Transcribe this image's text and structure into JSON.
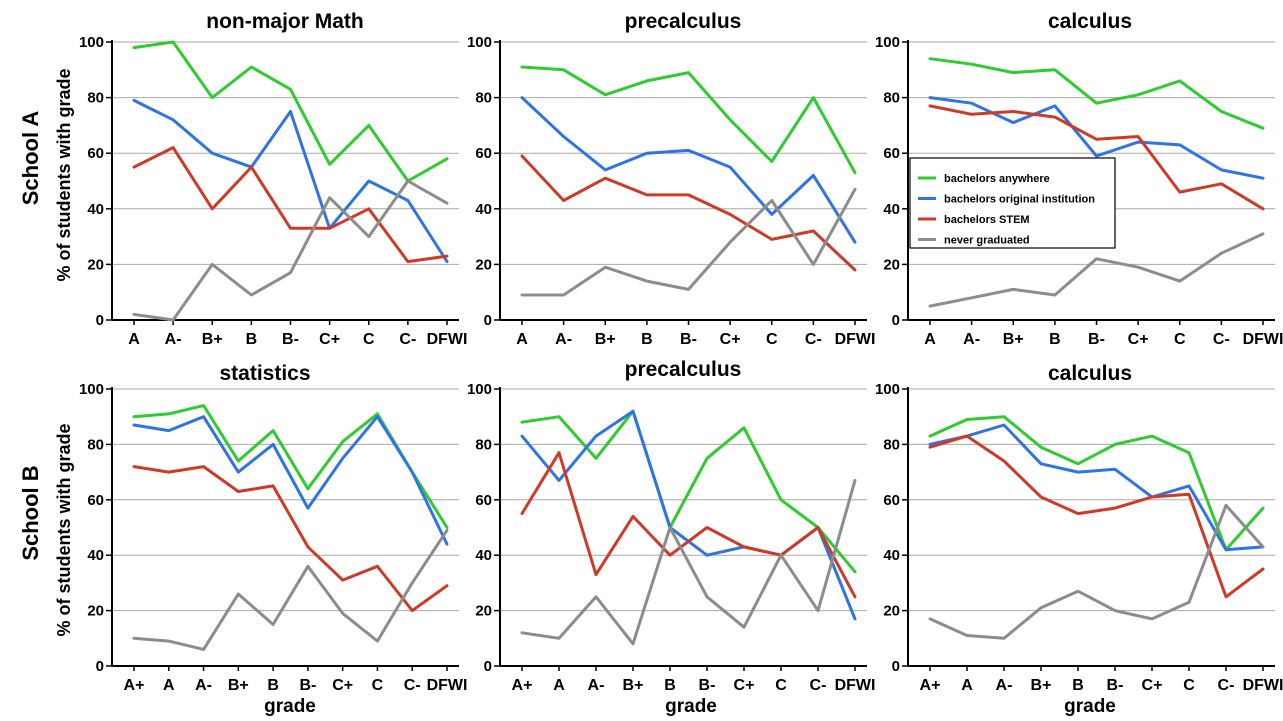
{
  "figure": {
    "row_labels": [
      "School A",
      "School B"
    ],
    "y_axis_labels": [
      "% of students with grade",
      "% of students  with grade"
    ],
    "x_axis_label": "grade"
  },
  "colors": {
    "bachelors_anywhere": "#2ecc2e",
    "bachelors_original": "#2f74e6",
    "bachelors_stem": "#cf3a26",
    "never_graduated": "#8c8c8c"
  },
  "legend": [
    {
      "label": "bachelors anywhere",
      "color_key": "bachelors_anywhere"
    },
    {
      "label": "bachelors original institution",
      "color_key": "bachelors_original"
    },
    {
      "label": "bachelors STEM",
      "color_key": "bachelors_stem"
    },
    {
      "label": "never graduated",
      "color_key": "never_graduated"
    }
  ],
  "chart_data": [
    {
      "type": "line",
      "title": "non-major Math",
      "row": "School A",
      "categories": [
        "A",
        "A-",
        "B+",
        "B",
        "B-",
        "C+",
        "C",
        "C-",
        "DFWI"
      ],
      "ylim": [
        0,
        100
      ],
      "yticks": [
        0,
        20,
        40,
        60,
        80,
        100
      ],
      "grid": true,
      "series": [
        {
          "name": "bachelors anywhere",
          "color_key": "bachelors_anywhere",
          "values": [
            98,
            100,
            80,
            91,
            83,
            56,
            70,
            50,
            58
          ]
        },
        {
          "name": "bachelors original institution",
          "color_key": "bachelors_original",
          "values": [
            79,
            72,
            60,
            55,
            75,
            33,
            50,
            43,
            21
          ]
        },
        {
          "name": "bachelors STEM",
          "color_key": "bachelors_stem",
          "values": [
            55,
            62,
            40,
            55,
            33,
            33,
            40,
            21,
            23
          ]
        },
        {
          "name": "never graduated",
          "color_key": "never_graduated",
          "values": [
            2,
            0,
            20,
            9,
            17,
            44,
            30,
            50,
            42
          ]
        }
      ]
    },
    {
      "type": "line",
      "title": "precalculus",
      "row": "School A",
      "categories": [
        "A",
        "A-",
        "B+",
        "B",
        "B-",
        "C+",
        "C",
        "C-",
        "DFWI"
      ],
      "ylim": [
        0,
        100
      ],
      "yticks": [
        0,
        20,
        40,
        60,
        80,
        100
      ],
      "grid": true,
      "series": [
        {
          "name": "bachelors anywhere",
          "color_key": "bachelors_anywhere",
          "values": [
            91,
            90,
            81,
            86,
            89,
            72,
            57,
            80,
            53
          ]
        },
        {
          "name": "bachelors original institution",
          "color_key": "bachelors_original",
          "values": [
            80,
            66,
            54,
            60,
            61,
            55,
            38,
            52,
            28
          ]
        },
        {
          "name": "bachelors STEM",
          "color_key": "bachelors_stem",
          "values": [
            59,
            43,
            51,
            45,
            45,
            38,
            29,
            32,
            18
          ]
        },
        {
          "name": "never graduated",
          "color_key": "never_graduated",
          "values": [
            9,
            9,
            19,
            14,
            11,
            28,
            43,
            20,
            47
          ]
        }
      ]
    },
    {
      "type": "line",
      "title": "calculus",
      "row": "School A",
      "categories": [
        "A",
        "A-",
        "B+",
        "B",
        "B-",
        "C+",
        "C",
        "C-",
        "DFWI"
      ],
      "ylim": [
        0,
        100
      ],
      "yticks": [
        0,
        20,
        40,
        60,
        80,
        100
      ],
      "grid": true,
      "legend_position": "center-left",
      "series": [
        {
          "name": "bachelors anywhere",
          "color_key": "bachelors_anywhere",
          "values": [
            94,
            92,
            89,
            90,
            78,
            81,
            86,
            75,
            69
          ]
        },
        {
          "name": "bachelors original institution",
          "color_key": "bachelors_original",
          "values": [
            80,
            78,
            71,
            77,
            59,
            64,
            63,
            54,
            51
          ]
        },
        {
          "name": "bachelors STEM",
          "color_key": "bachelors_stem",
          "values": [
            77,
            74,
            75,
            73,
            65,
            66,
            46,
            49,
            40
          ]
        },
        {
          "name": "never graduated",
          "color_key": "never_graduated",
          "values": [
            5,
            8,
            11,
            9,
            22,
            19,
            14,
            24,
            31
          ]
        }
      ]
    },
    {
      "type": "line",
      "title": "statistics",
      "row": "School B",
      "categories": [
        "A+",
        "A",
        "A-",
        "B+",
        "B",
        "B-",
        "C+",
        "C",
        "C-",
        "DFWI"
      ],
      "ylim": [
        0,
        100
      ],
      "yticks": [
        0,
        20,
        40,
        60,
        80,
        100
      ],
      "grid": true,
      "series": [
        {
          "name": "bachelors anywhere",
          "color_key": "bachelors_anywhere",
          "values": [
            90,
            91,
            94,
            74,
            85,
            64,
            81,
            91,
            70,
            50
          ]
        },
        {
          "name": "bachelors original institution",
          "color_key": "bachelors_original",
          "values": [
            87,
            85,
            90,
            70,
            80,
            57,
            75,
            90,
            70,
            44
          ]
        },
        {
          "name": "bachelors STEM",
          "color_key": "bachelors_stem",
          "values": [
            72,
            70,
            72,
            63,
            65,
            43,
            31,
            36,
            20,
            29
          ]
        },
        {
          "name": "never graduated",
          "color_key": "never_graduated",
          "values": [
            10,
            9,
            6,
            26,
            15,
            36,
            19,
            9,
            30,
            49
          ]
        }
      ]
    },
    {
      "type": "line",
      "title": "precalculus",
      "row": "School B",
      "categories": [
        "A+",
        "A",
        "A-",
        "B+",
        "B",
        "B-",
        "C+",
        "C",
        "C-",
        "DFWI"
      ],
      "ylim": [
        0,
        100
      ],
      "yticks": [
        0,
        20,
        40,
        60,
        80,
        100
      ],
      "grid": true,
      "series": [
        {
          "name": "bachelors anywhere",
          "color_key": "bachelors_anywhere",
          "values": [
            88,
            90,
            75,
            92,
            50,
            75,
            86,
            60,
            50,
            34
          ]
        },
        {
          "name": "bachelors original institution",
          "color_key": "bachelors_original",
          "values": [
            83,
            67,
            83,
            92,
            50,
            40,
            43,
            40,
            50,
            17
          ]
        },
        {
          "name": "bachelors STEM",
          "color_key": "bachelors_stem",
          "values": [
            55,
            77,
            33,
            54,
            40,
            50,
            43,
            40,
            50,
            25
          ]
        },
        {
          "name": "never graduated",
          "color_key": "never_graduated",
          "values": [
            12,
            10,
            25,
            8,
            50,
            25,
            14,
            40,
            20,
            67
          ]
        }
      ]
    },
    {
      "type": "line",
      "title": "calculus",
      "row": "School B",
      "categories": [
        "A+",
        "A",
        "A-",
        "B+",
        "B",
        "B-",
        "C+",
        "C",
        "C-",
        "DFWI"
      ],
      "ylim": [
        0,
        100
      ],
      "yticks": [
        0,
        20,
        40,
        60,
        80,
        100
      ],
      "grid": true,
      "series": [
        {
          "name": "bachelors anywhere",
          "color_key": "bachelors_anywhere",
          "values": [
            83,
            89,
            90,
            79,
            73,
            80,
            83,
            77,
            42,
            57
          ]
        },
        {
          "name": "bachelors original institution",
          "color_key": "bachelors_original",
          "values": [
            80,
            83,
            87,
            73,
            70,
            71,
            61,
            65,
            42,
            43
          ]
        },
        {
          "name": "bachelors STEM",
          "color_key": "bachelors_stem",
          "values": [
            79,
            83,
            74,
            61,
            55,
            57,
            61,
            62,
            25,
            35
          ]
        },
        {
          "name": "never graduated",
          "color_key": "never_graduated",
          "values": [
            17,
            11,
            10,
            21,
            27,
            20,
            17,
            23,
            58,
            43
          ]
        }
      ]
    }
  ]
}
